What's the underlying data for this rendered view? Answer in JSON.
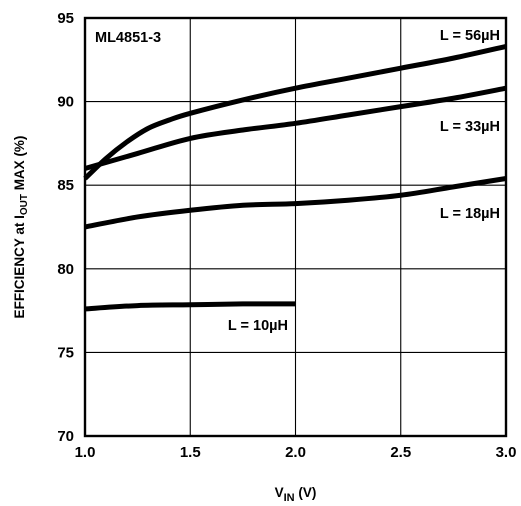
{
  "chart_data": {
    "type": "line",
    "title": "ML4851-3",
    "xlabel": {
      "main": "V",
      "sub": "IN",
      "unit": " (V)"
    },
    "ylabel": {
      "pre": "EFFICIENCY at I",
      "sub": "OUT",
      "post": " MAX (%)"
    },
    "xlim": [
      1.0,
      3.0
    ],
    "ylim": [
      70,
      95
    ],
    "xticks": [
      "1.0",
      "1.5",
      "2.0",
      "2.5",
      "3.0"
    ],
    "yticks": [
      "70",
      "75",
      "80",
      "85",
      "90",
      "95"
    ],
    "grid": true,
    "series": [
      {
        "name": "L = 56µH",
        "x": [
          1.0,
          1.1,
          1.2,
          1.3,
          1.4,
          1.5,
          1.75,
          2.0,
          2.25,
          2.5,
          2.75,
          3.0
        ],
        "y": [
          85.4,
          86.6,
          87.6,
          88.4,
          88.9,
          89.3,
          90.1,
          90.8,
          91.4,
          92.0,
          92.6,
          93.3
        ]
      },
      {
        "name": "L = 33µH",
        "x": [
          1.0,
          1.25,
          1.5,
          1.75,
          2.0,
          2.25,
          2.5,
          2.75,
          3.0
        ],
        "y": [
          86.0,
          86.9,
          87.8,
          88.3,
          88.7,
          89.2,
          89.7,
          90.2,
          90.8
        ]
      },
      {
        "name": "L = 18µH",
        "x": [
          1.0,
          1.25,
          1.5,
          1.75,
          2.0,
          2.25,
          2.5,
          2.75,
          3.0
        ],
        "y": [
          82.5,
          83.1,
          83.5,
          83.8,
          83.9,
          84.1,
          84.4,
          84.9,
          85.4
        ]
      },
      {
        "name": "L = 10µH",
        "x": [
          1.0,
          1.25,
          1.5,
          1.75,
          2.0
        ],
        "y": [
          77.6,
          77.8,
          77.85,
          77.9,
          77.9
        ]
      }
    ]
  }
}
